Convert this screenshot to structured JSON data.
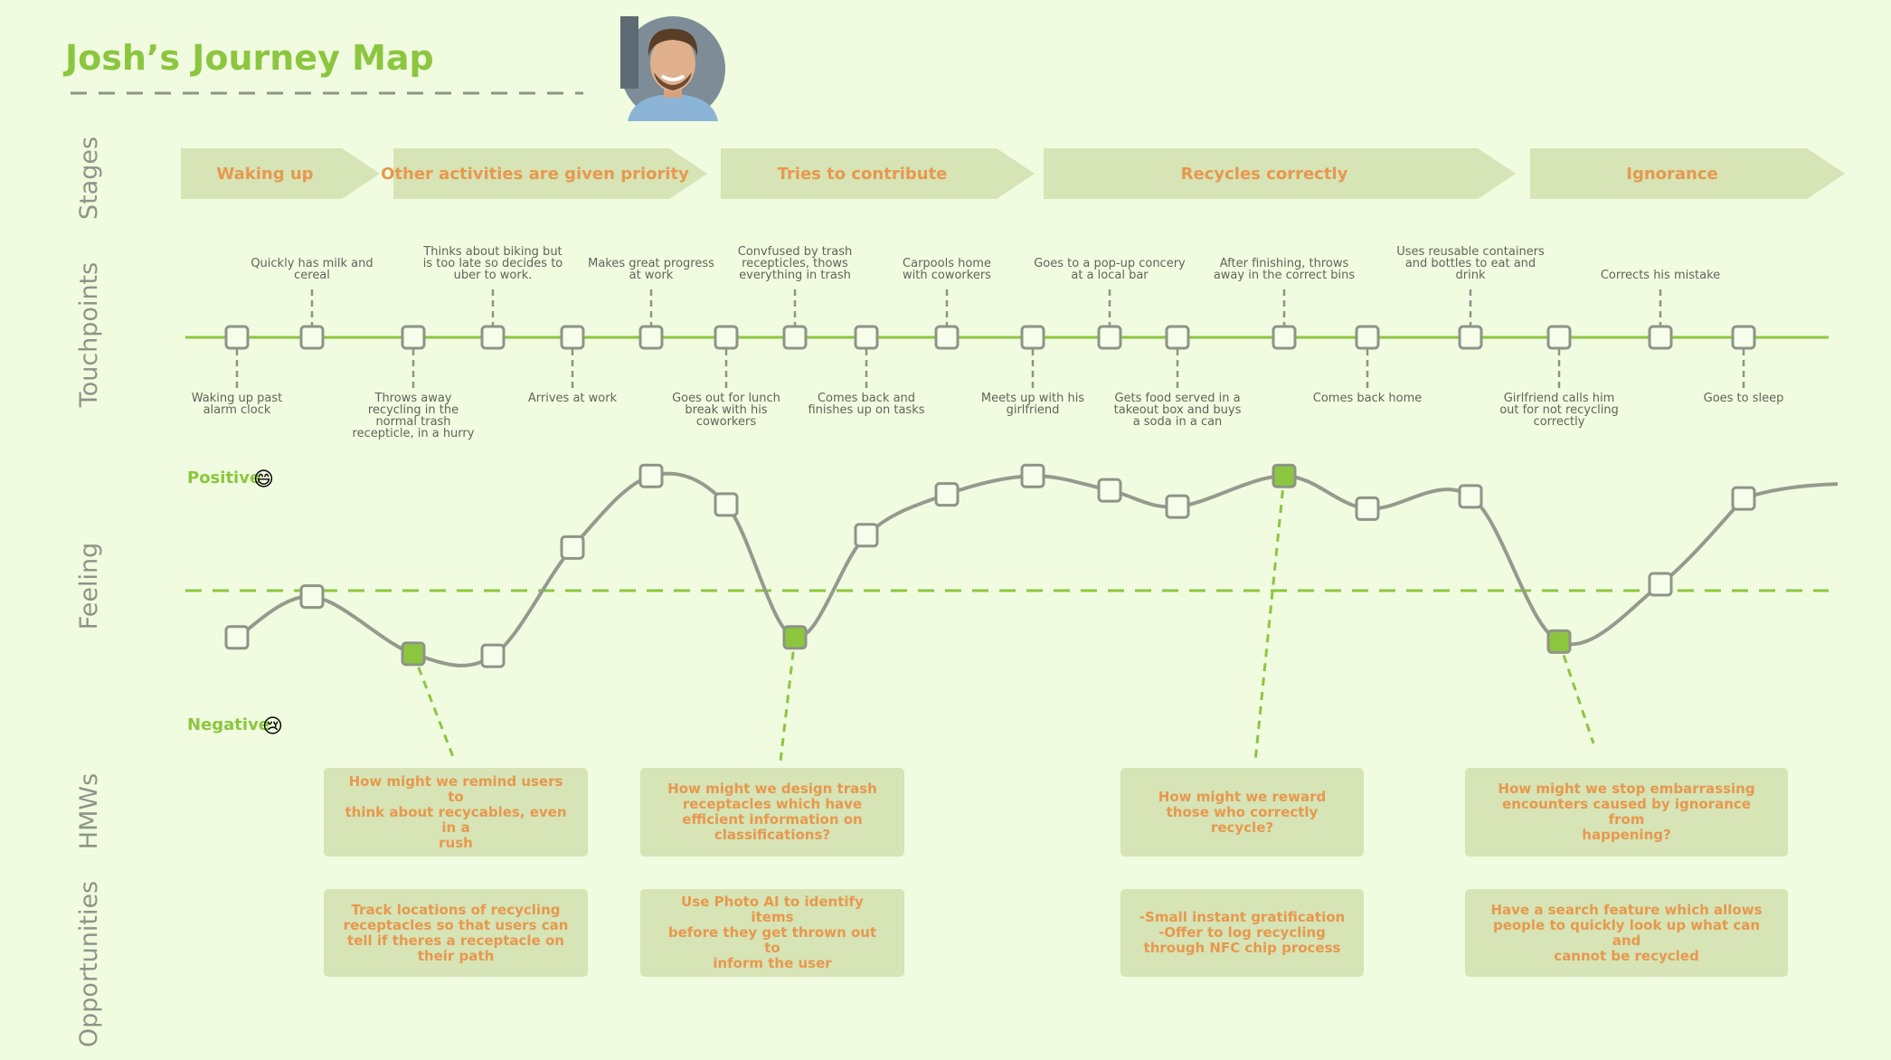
{
  "title": "Josh’s Journey Map",
  "row_labels": {
    "stages": "Stages",
    "touchpoints": "Touchpoints",
    "feeling": "Feeling",
    "hmws": "HMWs",
    "opportunities": "Opportunities"
  },
  "stages": [
    {
      "label": "Waking up"
    },
    {
      "label": "Other activities are given priority"
    },
    {
      "label": "Tries to contribute"
    },
    {
      "label": "Recycles correctly"
    },
    {
      "label": "Ignorance"
    }
  ],
  "touchpoints": [
    {
      "text": "Waking up past\nalarm clock",
      "side": "below",
      "feeling": 0.2
    },
    {
      "text": "Quickly has milk and\ncereal",
      "side": "above",
      "feeling": 0.4
    },
    {
      "text": "Throws away\nrecycling in the\nnormal trash\nrecepticle, in a hurry",
      "side": "below",
      "feeling": 0.12,
      "highlight": true
    },
    {
      "text": "Thinks about biking but\nis too late so decides to\nuber to work.",
      "side": "above",
      "feeling": 0.11
    },
    {
      "text": "Arrives at work",
      "side": "below",
      "feeling": 0.64
    },
    {
      "text": "Makes great progress\nat work",
      "side": "above",
      "feeling": 0.99
    },
    {
      "text": "Goes out for lunch\nbreak with his\ncoworkers",
      "side": "below",
      "feeling": 0.85
    },
    {
      "text": "Convfused by trash\nrecepticles, thows\neverything in trash",
      "side": "above",
      "feeling": 0.2,
      "highlight": true
    },
    {
      "text": "Comes back and\nfinishes up on tasks",
      "side": "below",
      "feeling": 0.7
    },
    {
      "text": "Carpools home\nwith coworkers",
      "side": "above",
      "feeling": 0.9
    },
    {
      "text": "Meets up with his\ngirlfriend",
      "side": "below",
      "feeling": 0.99
    },
    {
      "text": "Goes to a pop-up concery\nat a local bar",
      "side": "above",
      "feeling": 0.92
    },
    {
      "text": "Gets food served in a\ntakeout box and buys\na soda in a can",
      "side": "below",
      "feeling": 0.84
    },
    {
      "text": "After finishing, throws\naway in the correct bins",
      "side": "above",
      "feeling": 0.99,
      "highlight": true
    },
    {
      "text": "Comes back home",
      "side": "below",
      "feeling": 0.83
    },
    {
      "text": "Uses reusable containers\nand bottles to eat and\ndrink",
      "side": "above",
      "feeling": 0.89
    },
    {
      "text": "Girlfriend calls him\nout for not recycling\ncorrectly",
      "side": "below",
      "feeling": 0.18,
      "highlight": true
    },
    {
      "text": "Corrects his mistake",
      "side": "above",
      "feeling": 0.46
    },
    {
      "text": "Goes to sleep",
      "side": "below",
      "feeling": 0.88
    }
  ],
  "feeling_scale": {
    "positive": "Positive",
    "negative": "Negative",
    "positive_emoji": "😄",
    "negative_emoji": "😢"
  },
  "hmws": [
    "How might we remind users to\nthink about recycables, even in a\nrush",
    "How might we design trash\nreceptacles which have\nefficient information on\nclassifications?",
    "How might we reward\nthose who correctly\nrecycle?",
    "How might we stop embarrassing\nencounters caused by ignorance from\nhappening?"
  ],
  "opportunities": [
    "Track locations of recycling\nreceptacles so that users can\ntell if theres a receptacle on\ntheir path",
    "Use Photo AI to identify items\nbefore they get thrown out to\ninform the user",
    "-Small instant gratification\n-Offer to log recycling\nthrough NFC chip process",
    "Have a search feature which allows\npeople to quickly look up what can and\ncannot be recycled"
  ],
  "colors": {
    "accent": "#8cc63f",
    "text_orange": "#e8984d",
    "card": "#d6e4b6",
    "curve": "#969a8e",
    "background": "#f0fbe0"
  }
}
